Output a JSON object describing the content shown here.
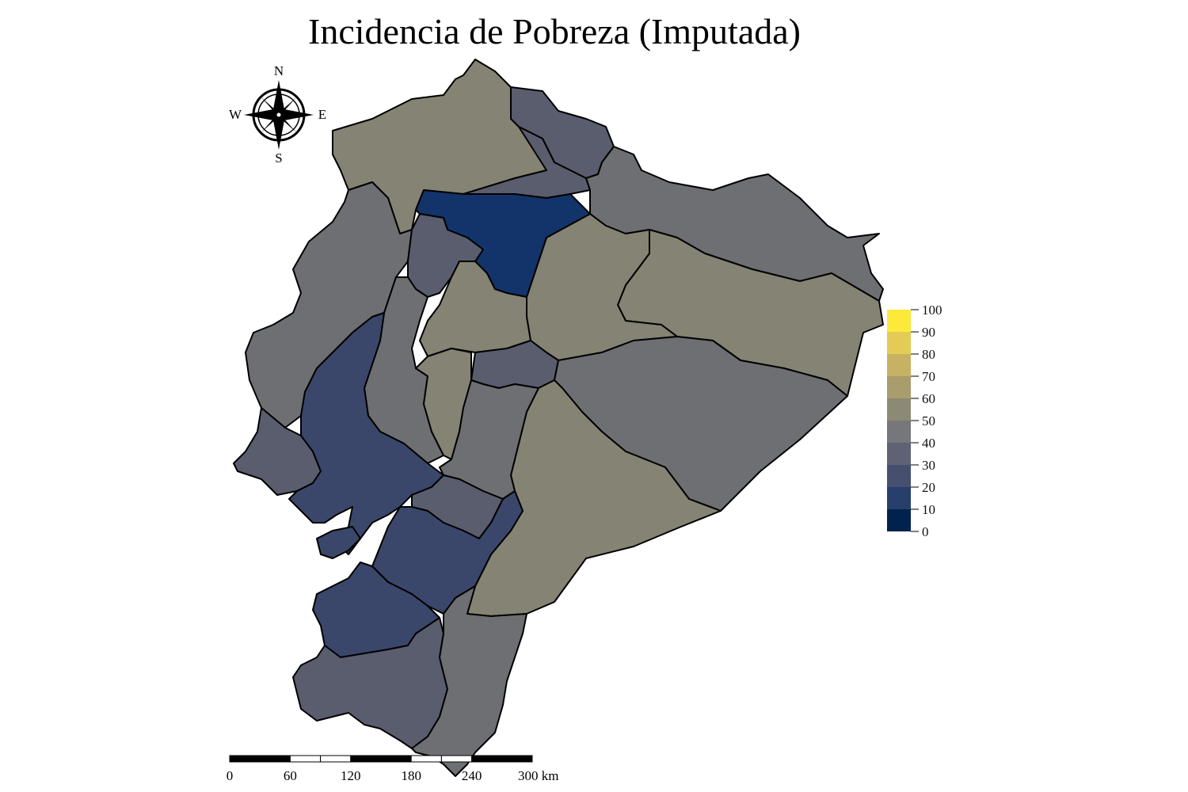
{
  "map": {
    "title": "Incidencia de Pobreza (Imputada)",
    "regions": [
      {
        "name": "esmeraldas",
        "fill": "#858373"
      },
      {
        "name": "carchi",
        "fill": "#5a5d6e"
      },
      {
        "name": "imbabura",
        "fill": "#5a5d6e"
      },
      {
        "name": "pichincha",
        "fill": "#13346b"
      },
      {
        "name": "sucumbios",
        "fill": "#6e6f73"
      },
      {
        "name": "orellana",
        "fill": "#858373"
      },
      {
        "name": "manabi",
        "fill": "#6e6f73"
      },
      {
        "name": "santo-domingo",
        "fill": "#5a5d6e"
      },
      {
        "name": "cotopaxi",
        "fill": "#858373"
      },
      {
        "name": "napo-west",
        "fill": "#858373"
      },
      {
        "name": "tungurahua",
        "fill": "#5a5d6e"
      },
      {
        "name": "pastaza",
        "fill": "#6e6f73"
      },
      {
        "name": "los-rios",
        "fill": "#6e6f73"
      },
      {
        "name": "bolivar",
        "fill": "#858373"
      },
      {
        "name": "chimborazo",
        "fill": "#6e6f73"
      },
      {
        "name": "morona-santiago",
        "fill": "#858373"
      },
      {
        "name": "santa-elena",
        "fill": "#5a5d6e"
      },
      {
        "name": "guayas",
        "fill": "#3a476a"
      },
      {
        "name": "canar",
        "fill": "#5a5d6e"
      },
      {
        "name": "azuay",
        "fill": "#3a476a"
      },
      {
        "name": "el-oro",
        "fill": "#3a476a"
      },
      {
        "name": "loja",
        "fill": "#5a5d6e"
      },
      {
        "name": "zamora-chinchipe",
        "fill": "#6e6f73"
      },
      {
        "name": "santa-elena-islands",
        "fill": "#3a476a"
      }
    ]
  },
  "compass": {
    "north": "N",
    "south": "S",
    "east": "E",
    "west": "W"
  },
  "legend": {
    "ticks": [
      "100",
      "90",
      "80",
      "70",
      "60",
      "50",
      "40",
      "30",
      "20",
      "10",
      "0"
    ],
    "colors": [
      "#fde93a",
      "#e4cb56",
      "#c7b264",
      "#a99c6d",
      "#8c8a72",
      "#76777a",
      "#5f6275",
      "#464f6d",
      "#283f6c",
      "#123872",
      "#00224e"
    ]
  },
  "scalebar": {
    "labels": [
      "0",
      "60",
      "120",
      "180",
      "240",
      "300 km"
    ]
  }
}
